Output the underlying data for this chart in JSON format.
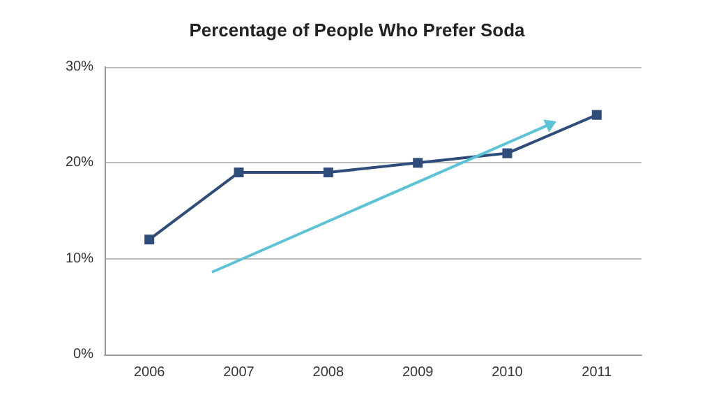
{
  "chart_data": {
    "type": "line",
    "title": "Percentage of People Who Prefer Soda",
    "xlim": [
      2005.5,
      2011.5
    ],
    "xticks": [
      2006,
      2007,
      2008,
      2009,
      2010,
      2011
    ],
    "ylim": [
      0,
      30
    ],
    "yticks": [
      {
        "value": 0,
        "label": "0%"
      },
      {
        "value": 10,
        "label": "10%"
      },
      {
        "value": 20,
        "label": "20%"
      },
      {
        "value": 30,
        "label": "30%"
      }
    ],
    "grid": "y",
    "marker": "square",
    "series": [
      {
        "color": "#2e4d7b",
        "x": [
          2006,
          2007,
          2008,
          2009,
          2010,
          2011
        ],
        "values": [
          12,
          19,
          19,
          20,
          21,
          25
        ]
      }
    ]
  }
}
